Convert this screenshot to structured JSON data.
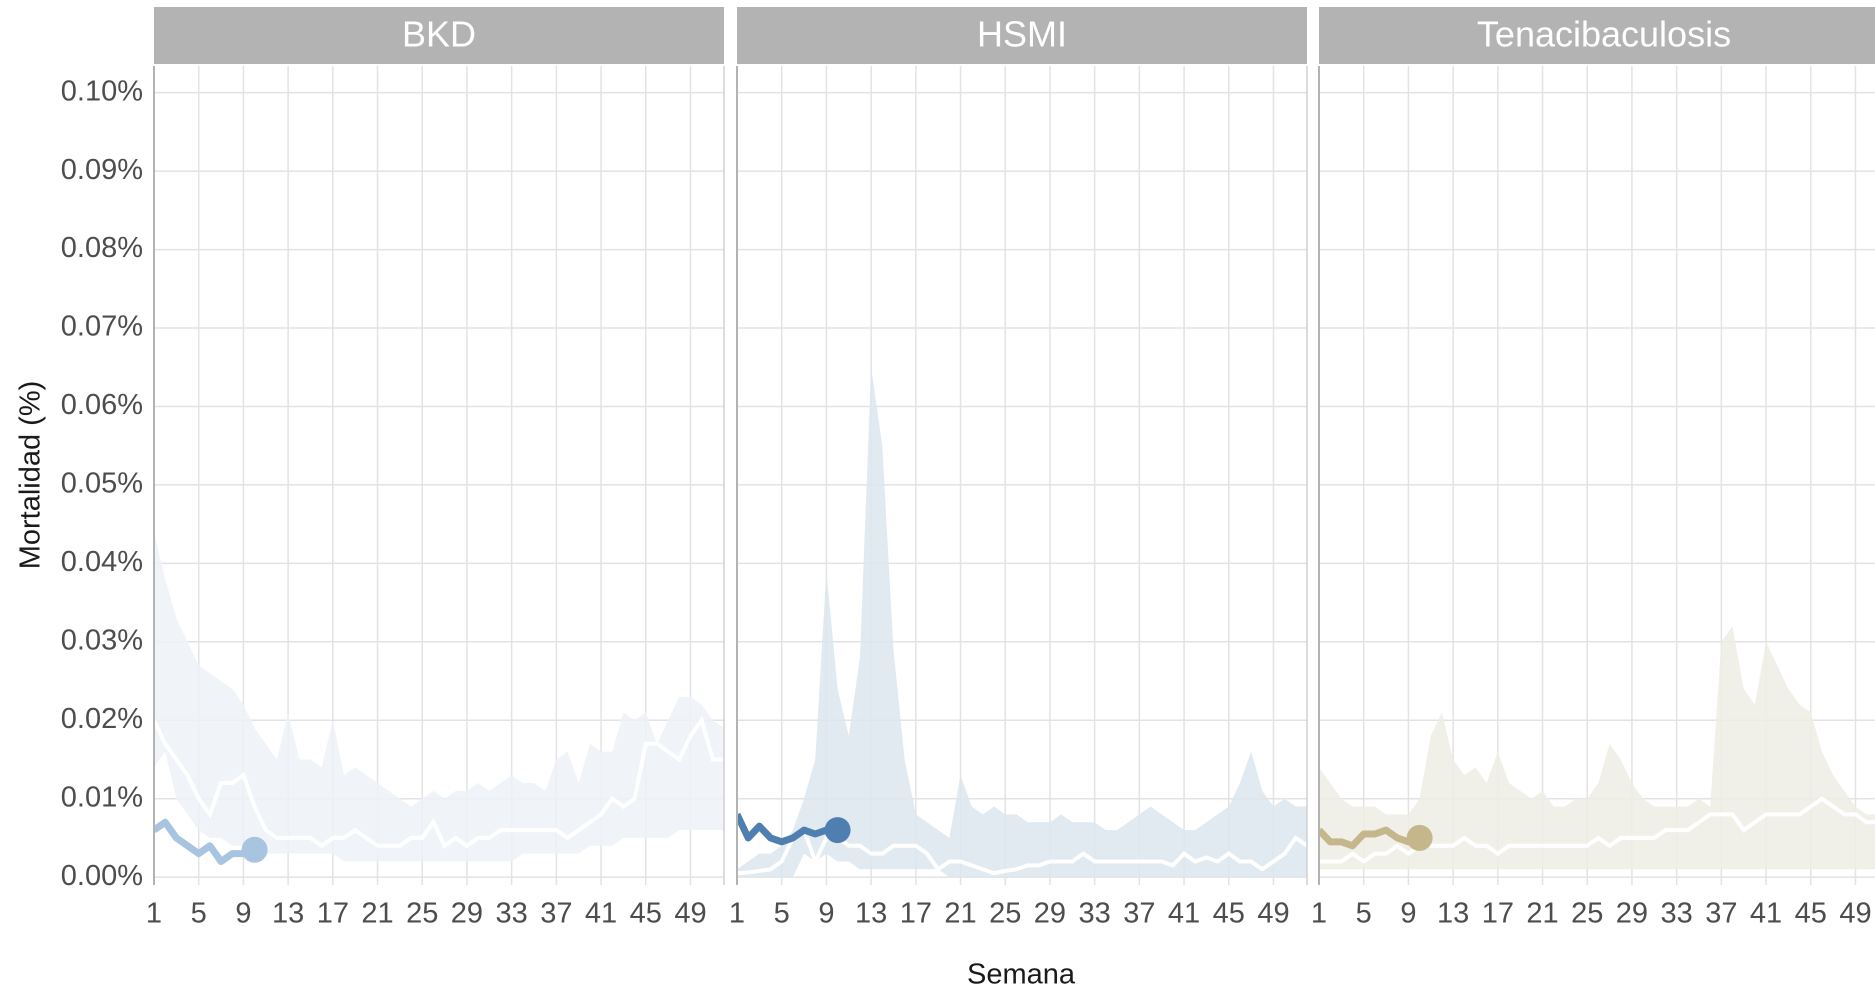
{
  "chart_data": {
    "type": "line",
    "y_label": "Mortalidad (%)",
    "x_label": "Semana",
    "xlim": [
      1,
      52
    ],
    "xticks": [
      1,
      5,
      9,
      13,
      17,
      21,
      25,
      29,
      33,
      37,
      41,
      45,
      49
    ],
    "ylim": [
      -0.001,
      0.1034
    ],
    "yticks": [
      {
        "value": 0,
        "label": "0.00%"
      },
      {
        "value": 0.01,
        "label": "0.01%"
      },
      {
        "value": 0.02,
        "label": "0.02%"
      },
      {
        "value": 0.03,
        "label": "0.03%"
      },
      {
        "value": 0.04,
        "label": "0.04%"
      },
      {
        "value": 0.05,
        "label": "0.05%"
      },
      {
        "value": 0.06,
        "label": "0.06%"
      },
      {
        "value": 0.07,
        "label": "0.07%"
      },
      {
        "value": 0.08,
        "label": "0.08%"
      },
      {
        "value": 0.09,
        "label": "0.09%"
      },
      {
        "value": 0.1,
        "label": "0.10%"
      }
    ],
    "grid": true,
    "facets": [
      {
        "title": "BKD",
        "color": "#a9c4e0",
        "band_color": "#edf2f7",
        "median_color": "#ffffff",
        "x": [
          1,
          2,
          3,
          4,
          5,
          6,
          7,
          8,
          9,
          10,
          11,
          12,
          13,
          14,
          15,
          16,
          17,
          18,
          19,
          20,
          21,
          22,
          23,
          24,
          25,
          26,
          27,
          28,
          29,
          30,
          31,
          32,
          33,
          34,
          35,
          36,
          37,
          38,
          39,
          40,
          41,
          42,
          43,
          44,
          45,
          46,
          47,
          48,
          49,
          50,
          51,
          52
        ],
        "band_high": [
          0.044,
          0.038,
          0.033,
          0.03,
          0.027,
          0.026,
          0.025,
          0.024,
          0.022,
          0.019,
          0.017,
          0.015,
          0.021,
          0.015,
          0.015,
          0.014,
          0.02,
          0.013,
          0.014,
          0.013,
          0.012,
          0.011,
          0.01,
          0.009,
          0.01,
          0.011,
          0.01,
          0.011,
          0.011,
          0.012,
          0.011,
          0.012,
          0.013,
          0.012,
          0.012,
          0.011,
          0.015,
          0.016,
          0.012,
          0.017,
          0.016,
          0.016,
          0.021,
          0.02,
          0.021,
          0.017,
          0.02,
          0.023,
          0.023,
          0.022,
          0.02,
          0.019
        ],
        "band_low": [
          0.014,
          0.016,
          0.01,
          0.008,
          0.006,
          0.005,
          0.005,
          0.004,
          0.004,
          0.003,
          0.003,
          0.003,
          0.003,
          0.003,
          0.003,
          0.003,
          0.003,
          0.002,
          0.002,
          0.002,
          0.002,
          0.002,
          0.002,
          0.002,
          0.002,
          0.002,
          0.002,
          0.002,
          0.002,
          0.002,
          0.002,
          0.002,
          0.002,
          0.003,
          0.003,
          0.003,
          0.003,
          0.003,
          0.003,
          0.004,
          0.004,
          0.004,
          0.005,
          0.005,
          0.005,
          0.005,
          0.005,
          0.006,
          0.006,
          0.006,
          0.006,
          0.006
        ],
        "median": [
          0.02,
          0.017,
          0.015,
          0.013,
          0.01,
          0.008,
          0.012,
          0.012,
          0.013,
          0.009,
          0.006,
          0.005,
          0.005,
          0.005,
          0.005,
          0.004,
          0.005,
          0.005,
          0.006,
          0.005,
          0.004,
          0.004,
          0.004,
          0.005,
          0.005,
          0.007,
          0.004,
          0.005,
          0.004,
          0.005,
          0.005,
          0.006,
          0.006,
          0.006,
          0.006,
          0.006,
          0.006,
          0.005,
          0.006,
          0.007,
          0.008,
          0.01,
          0.009,
          0.01,
          0.017,
          0.017,
          0.016,
          0.015,
          0.018,
          0.02,
          0.015,
          0.015
        ],
        "current": [
          0.006,
          0.007,
          0.005,
          0.004,
          0.003,
          0.004,
          0.002,
          0.003,
          0.003,
          0.0035
        ]
      },
      {
        "title": "HSMI",
        "color": "#4f7fb0",
        "band_color": "#dce6ef",
        "median_color": "#ffffff",
        "x": [
          1,
          2,
          3,
          4,
          5,
          6,
          7,
          8,
          9,
          10,
          11,
          12,
          13,
          14,
          15,
          16,
          17,
          18,
          19,
          20,
          21,
          22,
          23,
          24,
          25,
          26,
          27,
          28,
          29,
          30,
          31,
          32,
          33,
          34,
          35,
          36,
          37,
          38,
          39,
          40,
          41,
          42,
          43,
          44,
          45,
          46,
          47,
          48,
          49,
          50,
          51,
          52
        ],
        "band_high": [
          0.001,
          0.002,
          0.003,
          0.003,
          0.004,
          0.006,
          0.01,
          0.015,
          0.039,
          0.024,
          0.018,
          0.028,
          0.065,
          0.055,
          0.029,
          0.015,
          0.008,
          0.007,
          0.006,
          0.005,
          0.013,
          0.009,
          0.008,
          0.009,
          0.008,
          0.008,
          0.007,
          0.007,
          0.007,
          0.008,
          0.007,
          0.007,
          0.007,
          0.006,
          0.006,
          0.007,
          0.008,
          0.009,
          0.008,
          0.007,
          0.006,
          0.006,
          0.007,
          0.008,
          0.009,
          0.012,
          0.016,
          0.011,
          0.009,
          0.01,
          0.009,
          0.009
        ],
        "band_low": [
          0,
          0,
          0,
          0,
          0,
          0,
          0.003,
          0.002,
          0.003,
          0.002,
          0.002,
          0.001,
          0.001,
          0.001,
          0.001,
          0.001,
          0.001,
          0.001,
          0.001,
          0,
          0,
          0,
          0,
          0,
          0,
          0,
          0,
          0,
          0,
          0,
          0,
          0,
          0,
          0,
          0,
          0,
          0,
          0,
          0,
          0,
          0,
          0,
          0,
          0,
          0,
          0,
          0,
          0,
          0,
          0,
          0,
          0
        ],
        "median": [
          0.0005,
          0.0006,
          0.0008,
          0.001,
          0.002,
          0.005,
          0.006,
          0.002,
          0.005,
          0.005,
          0.004,
          0.004,
          0.003,
          0.003,
          0.004,
          0.004,
          0.004,
          0.003,
          0.001,
          0.002,
          0.002,
          0.0015,
          0.001,
          0.0005,
          0.0008,
          0.001,
          0.0015,
          0.0015,
          0.002,
          0.002,
          0.002,
          0.003,
          0.002,
          0.002,
          0.002,
          0.002,
          0.002,
          0.002,
          0.002,
          0.0015,
          0.003,
          0.002,
          0.0025,
          0.002,
          0.003,
          0.002,
          0.002,
          0.001,
          0.002,
          0.003,
          0.005,
          0.004
        ],
        "current": [
          0.008,
          0.005,
          0.0065,
          0.005,
          0.0045,
          0.005,
          0.006,
          0.0055,
          0.006,
          0.006
        ]
      },
      {
        "title": "Tenacibaculosis",
        "color": "#c5b68c",
        "band_color": "#efede4",
        "median_color": "#ffffff",
        "x": [
          1,
          2,
          3,
          4,
          5,
          6,
          7,
          8,
          9,
          10,
          11,
          12,
          13,
          14,
          15,
          16,
          17,
          18,
          19,
          20,
          21,
          22,
          23,
          24,
          25,
          26,
          27,
          28,
          29,
          30,
          31,
          32,
          33,
          34,
          35,
          36,
          37,
          38,
          39,
          40,
          41,
          42,
          43,
          44,
          45,
          46,
          47,
          48,
          49,
          50,
          51
        ],
        "band_high": [
          0.014,
          0.012,
          0.01,
          0.009,
          0.009,
          0.009,
          0.008,
          0.008,
          0.008,
          0.01,
          0.018,
          0.021,
          0.015,
          0.013,
          0.014,
          0.012,
          0.016,
          0.012,
          0.011,
          0.01,
          0.011,
          0.009,
          0.009,
          0.01,
          0.01,
          0.012,
          0.017,
          0.015,
          0.012,
          0.01,
          0.009,
          0.009,
          0.009,
          0.009,
          0.01,
          0.009,
          0.03,
          0.032,
          0.024,
          0.022,
          0.03,
          0.027,
          0.024,
          0.022,
          0.021,
          0.016,
          0.013,
          0.011,
          0.009,
          0.008,
          0.008
        ],
        "band_low": [
          0.001,
          0.001,
          0.001,
          0.001,
          0.001,
          0.001,
          0.001,
          0.001,
          0.001,
          0.001,
          0.001,
          0.001,
          0.001,
          0.001,
          0.001,
          0.001,
          0.001,
          0.001,
          0.001,
          0.001,
          0.001,
          0.001,
          0.001,
          0.001,
          0.001,
          0.001,
          0.001,
          0.001,
          0.001,
          0.001,
          0.001,
          0.001,
          0.001,
          0.001,
          0.001,
          0.001,
          0.001,
          0.001,
          0.001,
          0.001,
          0.001,
          0.001,
          0.001,
          0.001,
          0.001,
          0.001,
          0.001,
          0.001,
          0.001,
          0.001,
          0.001
        ],
        "median": [
          0.002,
          0.002,
          0.002,
          0.003,
          0.002,
          0.003,
          0.003,
          0.004,
          0.003,
          0.004,
          0.004,
          0.004,
          0.004,
          0.005,
          0.004,
          0.004,
          0.003,
          0.004,
          0.004,
          0.004,
          0.004,
          0.004,
          0.004,
          0.004,
          0.004,
          0.005,
          0.004,
          0.005,
          0.005,
          0.005,
          0.005,
          0.006,
          0.006,
          0.006,
          0.007,
          0.008,
          0.008,
          0.008,
          0.006,
          0.007,
          0.008,
          0.008,
          0.008,
          0.008,
          0.009,
          0.01,
          0.009,
          0.008,
          0.008,
          0.007,
          0.007
        ],
        "current": [
          0.006,
          0.0045,
          0.0045,
          0.004,
          0.0055,
          0.0055,
          0.006,
          0.005,
          0.0045,
          0.005
        ]
      }
    ]
  }
}
